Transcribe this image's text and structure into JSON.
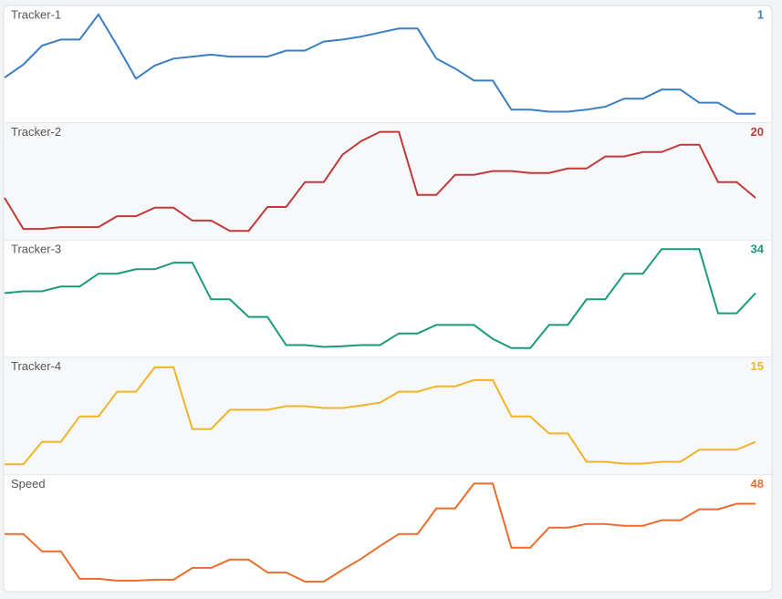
{
  "chart_data": [
    {
      "type": "line",
      "title": "Tracker-1",
      "current": 1,
      "color": "#3b7fc0",
      "ylim": [
        0.1,
        11.8
      ],
      "values": [
        4.6,
        5.9,
        7.8,
        8.4,
        8.4,
        10.9,
        7.8,
        4.5,
        5.8,
        6.5,
        6.7,
        6.9,
        6.7,
        6.7,
        6.7,
        7.3,
        7.3,
        8.2,
        8.4,
        8.7,
        9.1,
        9.5,
        9.5,
        6.5,
        5.5,
        4.3,
        4.3,
        1.4,
        1.4,
        1.2,
        1.2,
        1.4,
        1.7,
        2.5,
        2.5,
        3.4,
        3.4,
        2.1,
        2.1,
        1,
        1
      ]
    },
    {
      "type": "line",
      "title": "Tracker-2",
      "current": 20,
      "color": "#c0393b",
      "ylim": [
        8.5,
        40.5
      ],
      "values": [
        20,
        11.5,
        11.5,
        12,
        12,
        12,
        15,
        15,
        17.3,
        17.3,
        13.8,
        13.8,
        11,
        11,
        17.5,
        17.5,
        24.3,
        24.3,
        31.8,
        35.5,
        38,
        38,
        20.8,
        20.8,
        26.3,
        26.3,
        27.3,
        27.3,
        26.8,
        26.8,
        28,
        28,
        31.3,
        31.3,
        32.5,
        32.5,
        34.5,
        34.5,
        24.3,
        24.3,
        20
      ]
    },
    {
      "type": "line",
      "title": "Tracker-3",
      "current": 34,
      "color": "#1a9a7a",
      "ylim": [
        16.5,
        48.5
      ],
      "values": [
        34,
        34.5,
        34.5,
        35.8,
        35.8,
        39.3,
        39.3,
        40.5,
        40.5,
        42.3,
        42.3,
        32.3,
        32.3,
        27.5,
        27.5,
        19.8,
        19.8,
        19.3,
        19.5,
        19.8,
        19.8,
        23,
        23,
        25.3,
        25.3,
        25.3,
        21.5,
        19,
        19,
        25.3,
        25.3,
        32.3,
        32.3,
        39.3,
        39.3,
        46,
        46,
        46,
        28.5,
        28.5,
        34
      ]
    },
    {
      "type": "line",
      "title": "Tracker-4",
      "current": 15,
      "color": "#f0b429",
      "ylim": [
        6,
        38.3
      ],
      "values": [
        8.8,
        8.8,
        15,
        15,
        22,
        22,
        28.8,
        28.8,
        35.5,
        35.5,
        18.5,
        18.5,
        23.8,
        23.8,
        23.8,
        24.8,
        24.8,
        24.3,
        24.3,
        25,
        25.8,
        28.8,
        28.8,
        30.3,
        30.3,
        32,
        32,
        22,
        22,
        17.3,
        17.3,
        9.5,
        9.5,
        9,
        9,
        9.5,
        9.5,
        12.8,
        12.8,
        12.8,
        15
      ]
    },
    {
      "type": "line",
      "title": "Speed",
      "current": 48,
      "color": "#ee6c2b",
      "ylim": [
        0,
        64
      ],
      "values": [
        31.5,
        31.5,
        22,
        22,
        7,
        7,
        6,
        6,
        6.5,
        6.5,
        13,
        13,
        17.5,
        17.5,
        10.5,
        10.5,
        5.5,
        5.5,
        12,
        18,
        25,
        31.5,
        31.5,
        45.5,
        45.5,
        59,
        59,
        24,
        24,
        35,
        35,
        37,
        37,
        36,
        36,
        39,
        39,
        45,
        45,
        48,
        48
      ]
    }
  ]
}
